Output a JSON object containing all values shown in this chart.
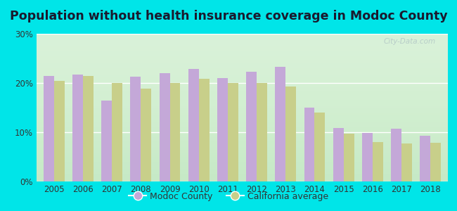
{
  "title": "Population without health insurance coverage in Modoc County",
  "years": [
    2005,
    2006,
    2007,
    2008,
    2009,
    2010,
    2011,
    2012,
    2013,
    2014,
    2015,
    2016,
    2017,
    2018
  ],
  "modoc": [
    21.5,
    21.7,
    16.5,
    21.3,
    22.0,
    22.8,
    21.0,
    22.3,
    23.3,
    15.0,
    10.8,
    9.8,
    10.7,
    9.3
  ],
  "california": [
    20.5,
    21.5,
    20.0,
    18.8,
    20.0,
    20.8,
    20.0,
    20.0,
    19.3,
    14.0,
    9.7,
    8.0,
    7.7,
    7.8
  ],
  "modoc_color": "#c4a8d8",
  "california_color": "#c8cf8a",
  "background_outer": "#00e5e8",
  "background_inner_bottom": "#d4f0d4",
  "background_inner_top": "#f0fff0",
  "ylim": [
    0,
    30
  ],
  "yticks": [
    0,
    10,
    20,
    30
  ],
  "ytick_labels": [
    "0%",
    "10%",
    "20%",
    "30%"
  ],
  "bar_width": 0.36,
  "title_fontsize": 12.5,
  "legend_labels": [
    "Modoc County",
    "California average"
  ],
  "watermark": "City-Data.com"
}
